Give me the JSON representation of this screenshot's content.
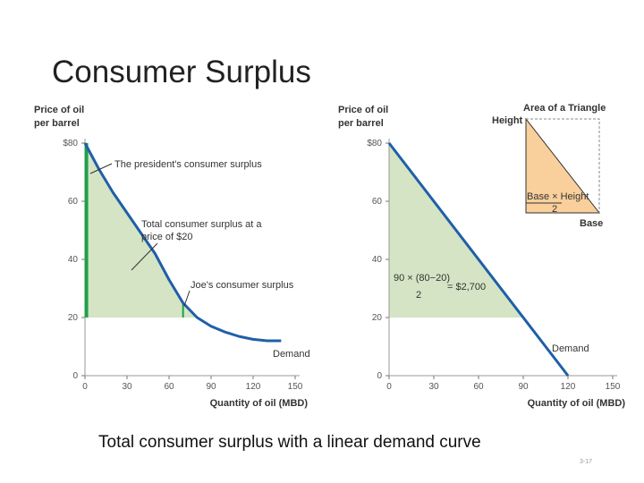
{
  "title": "Consumer Surplus",
  "caption": "Total consumer surplus with a linear demand curve",
  "slide_number": "3-17",
  "chart_data": [
    {
      "type": "line",
      "y_label": [
        "Price of oil",
        "per barrel"
      ],
      "x_label": "Quantity of oil (MBD)",
      "xlim": [
        0,
        150
      ],
      "xticks": [
        0,
        30,
        60,
        90,
        120,
        150
      ],
      "ylim": [
        0,
        80
      ],
      "yticks": [
        0,
        20,
        40,
        60,
        {
          "value": 80,
          "label": "$80"
        }
      ],
      "price": 20,
      "series": [
        {
          "name": "Demand",
          "color": "#1f5fa8",
          "x": [
            0,
            10,
            20,
            30,
            40,
            50,
            60,
            70,
            80,
            90,
            100,
            110,
            120,
            130,
            140
          ],
          "values": [
            80,
            71,
            63,
            56,
            49,
            42,
            33,
            25,
            20,
            17,
            15,
            13.5,
            12.5,
            12,
            12
          ]
        }
      ],
      "bars": [
        {
          "x": 1,
          "from": 20,
          "to": 80
        },
        {
          "x": 70,
          "from": 20,
          "to": 25
        }
      ],
      "bar_color": "#1fa04a",
      "annotations": [
        [
          "The president's consumer surplus"
        ],
        [
          "Total consumer surplus at a",
          "price of $20"
        ],
        [
          "Joe's consumer surplus"
        ]
      ]
    },
    {
      "type": "line",
      "y_label": [
        "Price of oil",
        "per barrel"
      ],
      "x_label": "Quantity of oil (MBD)",
      "xlim": [
        0,
        150
      ],
      "xticks": [
        0,
        30,
        60,
        90,
        120,
        150
      ],
      "ylim": [
        0,
        80
      ],
      "yticks": [
        0,
        20,
        40,
        60,
        {
          "value": 80,
          "label": "$80"
        }
      ],
      "price": 20,
      "series": [
        {
          "name": "Demand",
          "color": "#1f5fa8",
          "x": [
            0,
            120
          ],
          "values": [
            80,
            0
          ]
        }
      ],
      "formula": {
        "numerator": "90 × (80−20)",
        "denominator": "2",
        "result": "= $2,700"
      },
      "inset": {
        "title": "Area of a Triangle",
        "height": "Height",
        "numerator": "Base × Height",
        "denominator": "2",
        "base": "Base"
      }
    }
  ]
}
